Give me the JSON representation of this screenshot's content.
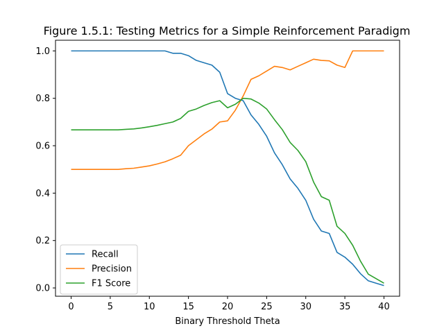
{
  "chart_data": {
    "type": "line",
    "title": "Figure 1.5.1: Testing Metrics for a Simple Reinforcement Paradigm",
    "xlabel": "Binary Threshold Theta",
    "ylabel": "",
    "xlim": [
      -2,
      42
    ],
    "ylim": [
      -0.035,
      1.045
    ],
    "xticks": [
      0,
      5,
      10,
      15,
      20,
      25,
      30,
      35,
      40
    ],
    "xtick_labels": [
      "0",
      "5",
      "10",
      "15",
      "20",
      "25",
      "30",
      "35",
      "40"
    ],
    "yticks": [
      0.0,
      0.2,
      0.4,
      0.6,
      0.8,
      1.0
    ],
    "ytick_labels": [
      "0.0",
      "0.2",
      "0.4",
      "0.6",
      "0.8",
      "1.0"
    ],
    "grid": false,
    "legend_position": "bottom-left",
    "x": [
      0,
      1,
      2,
      3,
      4,
      5,
      6,
      7,
      8,
      9,
      10,
      11,
      12,
      13,
      14,
      15,
      16,
      17,
      18,
      19,
      20,
      21,
      22,
      23,
      24,
      25,
      26,
      27,
      28,
      29,
      30,
      31,
      32,
      33,
      34,
      35,
      36,
      37,
      38,
      39,
      40
    ],
    "series": [
      {
        "name": "Recall",
        "color": "#1f77b4",
        "values": [
          1.0,
          1.0,
          1.0,
          1.0,
          1.0,
          1.0,
          1.0,
          1.0,
          1.0,
          1.0,
          1.0,
          1.0,
          1.0,
          0.99,
          0.99,
          0.98,
          0.96,
          0.95,
          0.94,
          0.91,
          0.82,
          0.8,
          0.79,
          0.73,
          0.69,
          0.64,
          0.57,
          0.52,
          0.46,
          0.42,
          0.37,
          0.29,
          0.24,
          0.23,
          0.15,
          0.13,
          0.1,
          0.06,
          0.03,
          0.02,
          0.01
        ]
      },
      {
        "name": "Precision",
        "color": "#ff7f0e",
        "values": [
          0.5,
          0.5,
          0.5,
          0.5,
          0.5,
          0.5,
          0.5,
          0.503,
          0.505,
          0.51,
          0.515,
          0.523,
          0.532,
          0.545,
          0.56,
          0.6,
          0.625,
          0.65,
          0.67,
          0.7,
          0.705,
          0.75,
          0.81,
          0.88,
          0.895,
          0.915,
          0.935,
          0.93,
          0.92,
          0.935,
          0.95,
          0.965,
          0.96,
          0.958,
          0.94,
          0.93,
          1.0,
          1.0,
          1.0,
          1.0,
          1.0
        ]
      },
      {
        "name": "F1 Score",
        "color": "#2ca02c",
        "values": [
          0.667,
          0.667,
          0.667,
          0.667,
          0.667,
          0.667,
          0.667,
          0.669,
          0.671,
          0.675,
          0.68,
          0.686,
          0.693,
          0.7,
          0.715,
          0.745,
          0.755,
          0.77,
          0.782,
          0.79,
          0.76,
          0.775,
          0.8,
          0.797,
          0.78,
          0.755,
          0.71,
          0.668,
          0.614,
          0.58,
          0.533,
          0.447,
          0.385,
          0.37,
          0.26,
          0.23,
          0.18,
          0.113,
          0.058,
          0.039,
          0.02
        ]
      }
    ]
  }
}
